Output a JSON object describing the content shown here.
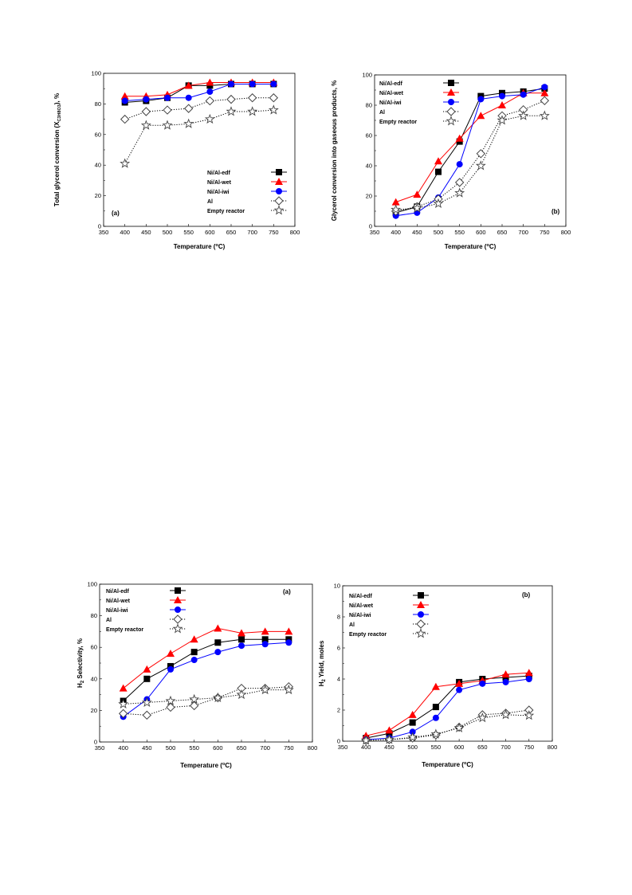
{
  "styles": {
    "Ni/Al-edf": {
      "color": "#000000",
      "marker": "square",
      "dash": "solid"
    },
    "Ni/Al-wet": {
      "color": "#ff0000",
      "marker": "triangle",
      "dash": "solid"
    },
    "Ni/Al-iwi": {
      "color": "#0000ff",
      "marker": "circle",
      "dash": "solid"
    },
    "Al": {
      "color": "#000000",
      "marker": "diamond",
      "dash": "dotted"
    },
    "Empty reactor": {
      "color": "#000000",
      "marker": "star",
      "dash": "dotted"
    }
  },
  "chart_data": [
    {
      "id": "chart-total-conversion",
      "type": "line",
      "panel_label": "(a)",
      "xlabel": "Temperature (°C)",
      "ylabel": "Total glycerol conversion (X_C3H8O3), %",
      "xlim": [
        350,
        800
      ],
      "ylim": [
        0,
        100
      ],
      "xticks": [
        350,
        400,
        450,
        500,
        550,
        600,
        650,
        700,
        750,
        800
      ],
      "yticks": [
        0,
        20,
        40,
        60,
        80,
        100
      ],
      "legend_position": "bottom-right",
      "x": [
        400,
        450,
        500,
        550,
        600,
        650,
        700,
        750
      ],
      "series": [
        {
          "name": "Ni/Al-edf",
          "values": [
            81,
            82,
            84,
            92,
            92,
            93,
            93,
            93
          ]
        },
        {
          "name": "Ni/Al-wet",
          "values": [
            85,
            85,
            86,
            92,
            94,
            94,
            94,
            94
          ]
        },
        {
          "name": "Ni/Al-iwi",
          "values": [
            82,
            83,
            84,
            84,
            88,
            93,
            93,
            93
          ]
        },
        {
          "name": "Al",
          "values": [
            70,
            75,
            76,
            77,
            82,
            83,
            84,
            84
          ]
        },
        {
          "name": "Empty reactor",
          "values": [
            41,
            66,
            66,
            67,
            70,
            75,
            75,
            76
          ]
        }
      ]
    },
    {
      "id": "chart-gaseous-conversion",
      "type": "line",
      "panel_label": "(b)",
      "xlabel": "Temperature (°C)",
      "ylabel": "Glycerol conversion into gaseous products, %",
      "xlim": [
        350,
        800
      ],
      "ylim": [
        0,
        100
      ],
      "xticks": [
        350,
        400,
        450,
        500,
        550,
        600,
        650,
        700,
        750,
        800
      ],
      "yticks": [
        0,
        20,
        40,
        60,
        80,
        100
      ],
      "legend_position": "top-left",
      "x": [
        400,
        450,
        500,
        550,
        600,
        650,
        700,
        750
      ],
      "series": [
        {
          "name": "Ni/Al-edf",
          "values": [
            9,
            13,
            36,
            56,
            86,
            88,
            89,
            91
          ]
        },
        {
          "name": "Ni/Al-wet",
          "values": [
            16,
            21,
            43,
            58,
            73,
            80,
            88,
            88
          ]
        },
        {
          "name": "Ni/Al-iwi",
          "values": [
            7,
            9,
            19,
            41,
            84,
            86,
            87,
            92
          ]
        },
        {
          "name": "Al",
          "values": [
            10,
            13,
            18,
            29,
            48,
            73,
            77,
            83
          ]
        },
        {
          "name": "Empty reactor",
          "values": [
            11,
            12,
            15,
            22,
            40,
            70,
            73,
            73
          ]
        }
      ]
    },
    {
      "id": "chart-h2-selectivity",
      "type": "line",
      "panel_label": "(a)",
      "xlabel": "Temperature (°C)",
      "ylabel": "H2 Selectivity, %",
      "xlim": [
        350,
        800
      ],
      "ylim": [
        0,
        100
      ],
      "xticks": [
        350,
        400,
        450,
        500,
        550,
        600,
        650,
        700,
        750,
        800
      ],
      "yticks": [
        0,
        20,
        40,
        60,
        80,
        100
      ],
      "legend_position": "top-left",
      "x": [
        400,
        450,
        500,
        550,
        600,
        650,
        700,
        750
      ],
      "series": [
        {
          "name": "Ni/Al-edf",
          "values": [
            26,
            40,
            48,
            57,
            63,
            65,
            65,
            65
          ]
        },
        {
          "name": "Ni/Al-wet",
          "values": [
            34,
            46,
            56,
            65,
            72,
            69,
            70,
            70
          ]
        },
        {
          "name": "Ni/Al-iwi",
          "values": [
            16,
            27,
            46,
            52,
            57,
            61,
            62,
            63
          ]
        },
        {
          "name": "Al",
          "values": [
            18,
            17,
            22,
            23,
            28,
            34,
            34,
            35
          ]
        },
        {
          "name": "Empty reactor",
          "values": [
            24,
            25,
            26,
            27,
            28,
            30,
            33,
            33
          ]
        }
      ]
    },
    {
      "id": "chart-h2-yield",
      "type": "line",
      "panel_label": "(b)",
      "xlabel": "Temperature (°C)",
      "ylabel": "H2 Yield, moles",
      "xlim": [
        350,
        800
      ],
      "ylim": [
        0,
        10
      ],
      "xticks": [
        350,
        400,
        450,
        500,
        550,
        600,
        650,
        700,
        750,
        800
      ],
      "yticks": [
        0,
        2,
        4,
        6,
        8,
        10
      ],
      "legend_position": "top-left",
      "x": [
        400,
        450,
        500,
        550,
        600,
        650,
        700,
        750
      ],
      "series": [
        {
          "name": "Ni/Al-edf",
          "values": [
            0.2,
            0.5,
            1.2,
            2.2,
            3.8,
            4.0,
            4.1,
            4.2
          ]
        },
        {
          "name": "Ni/Al-wet",
          "values": [
            0.35,
            0.7,
            1.7,
            3.5,
            3.7,
            3.9,
            4.3,
            4.4
          ]
        },
        {
          "name": "Ni/Al-iwi",
          "values": [
            0.1,
            0.2,
            0.6,
            1.5,
            3.3,
            3.7,
            3.8,
            4.0
          ]
        },
        {
          "name": "Al",
          "values": [
            0.05,
            0.1,
            0.2,
            0.4,
            0.9,
            1.7,
            1.8,
            2.0
          ]
        },
        {
          "name": "Empty reactor",
          "values": [
            0.05,
            0.1,
            0.25,
            0.45,
            0.85,
            1.5,
            1.7,
            1.65
          ]
        }
      ]
    }
  ]
}
